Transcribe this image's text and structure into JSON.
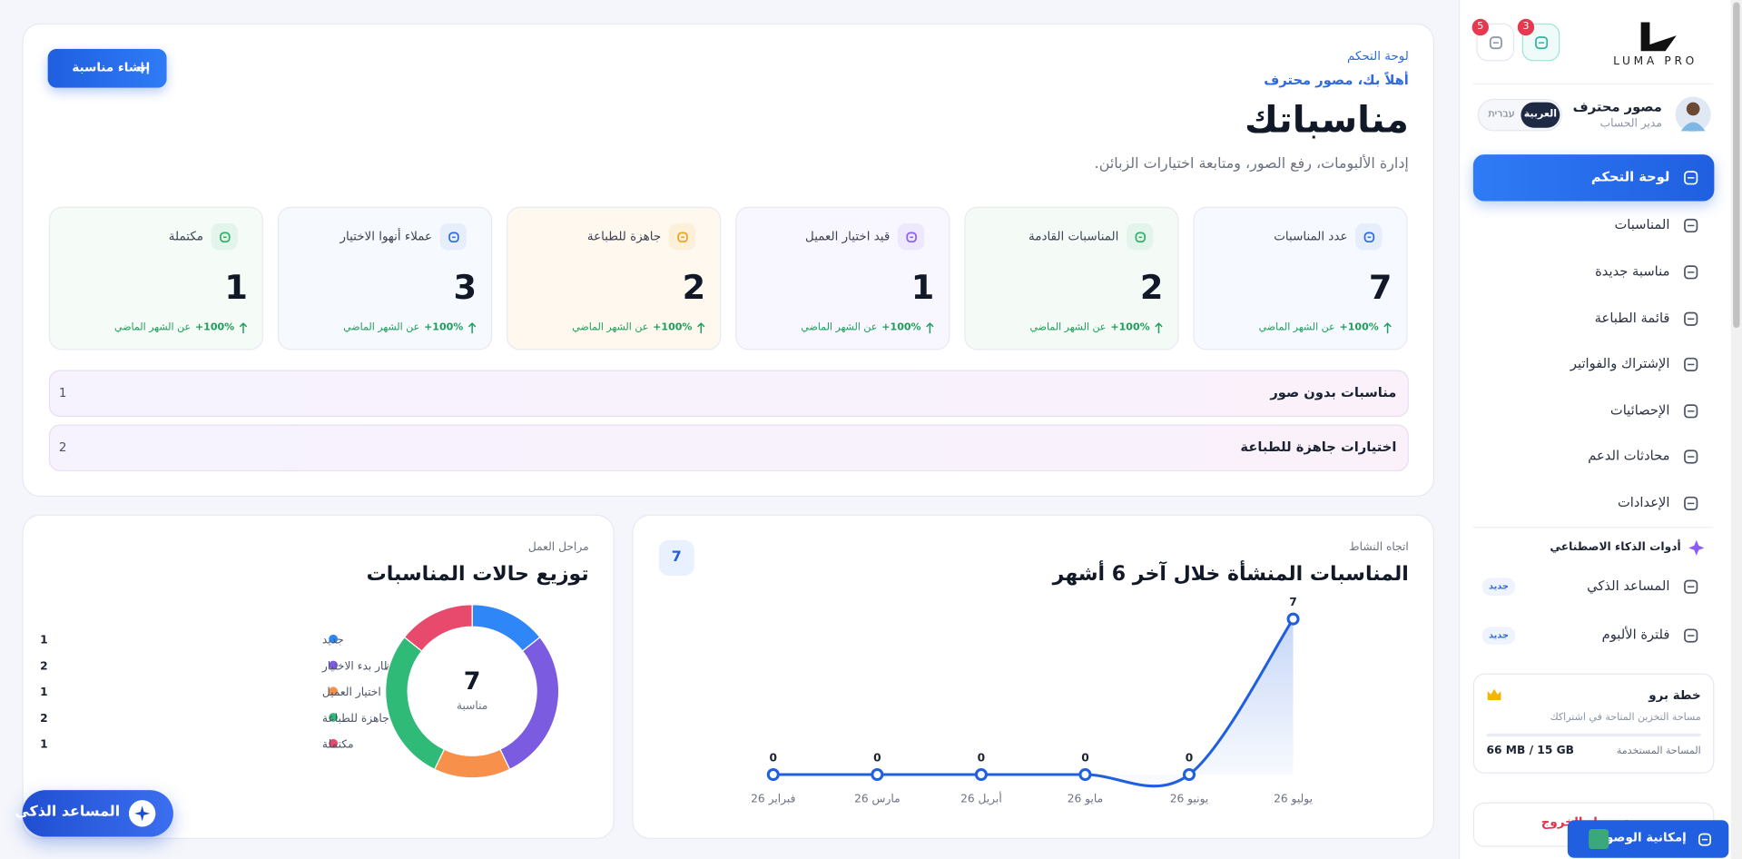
{
  "sidebar": {
    "logo": "LUMA PRO",
    "badges": [
      3,
      5
    ],
    "user": {
      "name": "مصور محترف",
      "role": "مدير الحساب"
    },
    "languages": [
      "العربية",
      "עברית"
    ],
    "nav": [
      "لوحة التحكم",
      "المناسبات",
      "مناسبة جديدة",
      "قائمة الطباعة",
      "الإشتراك والفواتير",
      "الإحصائيات",
      "محادثات الدعم",
      "الإعدادات"
    ],
    "ai_section": {
      "title": "أدوات الذكاء الاصطناعي",
      "items": [
        {
          "label": "المساعد الذكي",
          "badge": "جديد"
        },
        {
          "label": "فلترة الألبوم",
          "badge": "جديد"
        }
      ]
    },
    "plan": {
      "title": "خطة برو",
      "description": "مساحة التخزين المتاحة في اشتراكك",
      "usage_label": "المساحة المستخدمة",
      "usage": "66 MB / 15 GB"
    },
    "logout": "تسجيل الخروج"
  },
  "header": {
    "breadcrumb": "لوحة التحكم",
    "greeting": "أهلاً بك، مصور محترف",
    "title": "مناسباتك",
    "subtitle": "إدارة الألبومات، رفع الصور، ومتابعة اختيارات الزبائن.",
    "create_button": "إنشاء مناسبة"
  },
  "stats": [
    {
      "label": "عدد المناسبات",
      "value": 7,
      "change": "+100%",
      "note": "عن الشهر الماضي"
    },
    {
      "label": "المناسبات القادمة",
      "value": 2,
      "change": "+100%",
      "note": "عن الشهر الماضي"
    },
    {
      "label": "قيد اختيار العميل",
      "value": 1,
      "change": "+100%",
      "note": "عن الشهر الماضي"
    },
    {
      "label": "جاهزة للطباعة",
      "value": 2,
      "change": "+100%",
      "note": "عن الشهر الماضي"
    },
    {
      "label": "عملاء أنهوا الاختيار",
      "value": 3,
      "change": "+100%",
      "note": "عن الشهر الماضي"
    },
    {
      "label": "مكتملة",
      "value": 1,
      "change": "+100%",
      "note": "عن الشهر الماضي"
    }
  ],
  "alerts": [
    {
      "label": "مناسبات بدون صور",
      "count": 1
    },
    {
      "label": "اختيارات جاهزة للطباعة",
      "count": 2
    }
  ],
  "chart_data": [
    {
      "type": "line",
      "eyebrow": "اتجاه النشاط",
      "title": "المناسبات المنشأة خلال آخر 6 أشهر",
      "badge": 7,
      "categories": [
        "فبراير 26",
        "مارس 26",
        "أبريل 26",
        "مايو 26",
        "يونيو 26",
        "يوليو 26"
      ],
      "values": [
        0,
        0,
        0,
        0,
        0,
        7
      ],
      "color": "#1f5fe0",
      "ylim": [
        0,
        7
      ]
    },
    {
      "type": "pie",
      "eyebrow": "مراحل العمل",
      "title": "توزيع حالات المناسبات",
      "center_value": 7,
      "center_label": "مناسبة",
      "categories": [
        "جديد",
        "بانتظار بدء الاختيار",
        "قيد اختيار العميل",
        "جاهزة للطباعة",
        "مكتملة"
      ],
      "values": [
        1,
        2,
        1,
        2,
        1
      ],
      "colors": [
        "#2f86f6",
        "#7b5be0",
        "#f7904a",
        "#2fba78",
        "#e84a6d"
      ]
    }
  ],
  "assistant_button": "المساعد الذكي",
  "accessibility_button": "إمكانية الوصول"
}
